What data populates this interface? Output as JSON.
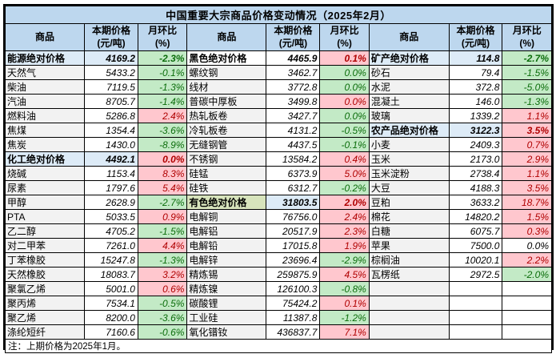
{
  "title": "中国重要大宗商品价格变动情况（2025年2月）",
  "note": "注：上期价格为2025年1月。",
  "header": {
    "name": "商品",
    "price1": "本期价格",
    "price2": "(元/吨)",
    "mom1": "月环比",
    "mom2": "(%)"
  },
  "colors": {
    "header_bg": "#BDD7EE",
    "section_blue": "#DDEBF7",
    "section_green": "#D7E4BC",
    "name_gray": "#F2F2F2",
    "white": "#FFFFFF",
    "up_bg": "#FFC7CE",
    "up_text": "#B00000",
    "down_bg": "#C3EAC6",
    "down_text": "#0B6D0B"
  },
  "groups": [
    [
      {
        "name": "能源绝对价格",
        "price": "4169.2",
        "mom": "-2.3%",
        "section": true,
        "name_fill": "blue",
        "price_fill": "blue",
        "mom_fill": "green"
      },
      {
        "name": "天然气",
        "price": "5433.2",
        "mom": "-0.1%",
        "mom_fill": "green"
      },
      {
        "name": "柴油",
        "price": "7119.5",
        "mom": "-1.3%",
        "mom_fill": "green"
      },
      {
        "name": "汽油",
        "price": "8705.7",
        "mom": "-1.4%",
        "mom_fill": "green"
      },
      {
        "name": "燃料油",
        "price": "5286.8",
        "mom": "2.4%",
        "mom_fill": "red"
      },
      {
        "name": "焦煤",
        "price": "1354.4",
        "mom": "-3.6%",
        "mom_fill": "green"
      },
      {
        "name": "焦炭",
        "price": "1430.0",
        "mom": "-8.9%",
        "mom_fill": "green"
      },
      {
        "name": "化工绝对价格",
        "price": "4492.1",
        "mom": "0.0%",
        "section": true,
        "name_fill": "blue",
        "price_fill": "blue",
        "mom_fill": "red"
      },
      {
        "name": "烧碱",
        "price": "1153.4",
        "mom": "8.3%",
        "mom_fill": "red"
      },
      {
        "name": "尿素",
        "price": "1797.6",
        "mom": "5.4%",
        "mom_fill": "red"
      },
      {
        "name": "甲醇",
        "price": "2628.9",
        "mom": "-2.7%",
        "mom_fill": "green"
      },
      {
        "name": "PTA",
        "price": "5033.5",
        "mom": "0.9%",
        "mom_fill": "red"
      },
      {
        "name": "乙二醇",
        "price": "4705.2",
        "mom": "-1.5%",
        "mom_fill": "green"
      },
      {
        "name": "对二甲苯",
        "price": "7261.0",
        "mom": "4.4%",
        "mom_fill": "red"
      },
      {
        "name": "丁苯橡胶",
        "price": "15247.8",
        "mom": "-1.3%",
        "mom_fill": "green"
      },
      {
        "name": "天然橡胶",
        "price": "18083.7",
        "mom": "3.2%",
        "mom_fill": "red"
      },
      {
        "name": "聚氯乙烯",
        "price": "5001.0",
        "mom": "0.6%",
        "mom_fill": "red"
      },
      {
        "name": "聚丙烯",
        "price": "7534.1",
        "mom": "-0.5%",
        "mom_fill": "green"
      },
      {
        "name": "聚乙烯",
        "price": "8200.0",
        "mom": "-3.6%",
        "mom_fill": "green"
      },
      {
        "name": "涤纶短纤",
        "price": "7160.6",
        "mom": "-0.6%",
        "mom_fill": "green"
      }
    ],
    [
      {
        "name": "黑色绝对价格",
        "price": "4465.9",
        "mom": "0.1%",
        "section": true,
        "name_fill": "white",
        "price_fill": "white",
        "mom_fill": "red"
      },
      {
        "name": "螺纹钢",
        "price": "3462.7",
        "mom": "0.0%",
        "mom_fill": "green"
      },
      {
        "name": "线材",
        "price": "3772.8",
        "mom": "0.0%",
        "mom_fill": "green"
      },
      {
        "name": "普碳中厚板",
        "price": "3499.8",
        "mom": "0.0%",
        "mom_fill": "red"
      },
      {
        "name": "热轧板卷",
        "price": "3427.7",
        "mom": "0.0%",
        "mom_fill": "green"
      },
      {
        "name": "冷轧板卷",
        "price": "4131.2",
        "mom": "-0.5%",
        "mom_fill": "green"
      },
      {
        "name": "无缝钢管",
        "price": "4437.5",
        "mom": "-0.1%",
        "mom_fill": "green"
      },
      {
        "name": "不锈钢",
        "price": "13584.2",
        "mom": "0.4%",
        "mom_fill": "red"
      },
      {
        "name": "硅锰",
        "price": "6373.9",
        "mom": "5.0%",
        "mom_fill": "red"
      },
      {
        "name": "硅铁",
        "price": "6312.7",
        "mom": "-0.2%",
        "mom_fill": "green"
      },
      {
        "name": "有色绝对价格",
        "price": "31803.5",
        "mom": "2.0%",
        "section": true,
        "name_fill": "green",
        "price_fill": "blue",
        "mom_fill": "red"
      },
      {
        "name": "电解铜",
        "price": "76756.0",
        "mom": "2.4%",
        "mom_fill": "red"
      },
      {
        "name": "电解铝",
        "price": "20517.9",
        "mom": "2.3%",
        "mom_fill": "red"
      },
      {
        "name": "电解铅",
        "price": "17015.8",
        "mom": "1.9%",
        "mom_fill": "red"
      },
      {
        "name": "电解锌",
        "price": "23696.4",
        "mom": "-2.9%",
        "mom_fill": "green"
      },
      {
        "name": "精炼锡",
        "price": "259875.9",
        "mom": "4.5%",
        "mom_fill": "red"
      },
      {
        "name": "精炼镍",
        "price": "126100.3",
        "mom": "-0.8%",
        "mom_fill": "green"
      },
      {
        "name": "碳酸锂",
        "price": "75424.2",
        "mom": "0.1%",
        "mom_fill": "red"
      },
      {
        "name": "工业硅",
        "price": "11387.8",
        "mom": "-1.2%",
        "mom_fill": "green"
      },
      {
        "name": "氧化镨钕",
        "price": "436837.7",
        "mom": "7.1%",
        "mom_fill": "red"
      }
    ],
    [
      {
        "name": "矿产绝对价格",
        "price": "114.8",
        "mom": "-2.7%",
        "section": true,
        "name_fill": "blue",
        "price_fill": "blue",
        "mom_fill": "green"
      },
      {
        "name": "砂石",
        "price": "79.4",
        "mom": "-1.5%",
        "mom_fill": "green"
      },
      {
        "name": "水泥",
        "price": "372.8",
        "mom": "-5.0%",
        "mom_fill": "green"
      },
      {
        "name": "混凝土",
        "price": "146.0",
        "mom": "-1.3%",
        "mom_fill": "green"
      },
      {
        "name": "玻璃",
        "price": "1339.2",
        "mom": "1.1%",
        "mom_fill": "red"
      },
      {
        "name": "农产品绝对价格",
        "price": "3122.3",
        "mom": "3.5%",
        "section": true,
        "name_fill": "blue",
        "price_fill": "blue",
        "mom_fill": "red"
      },
      {
        "name": "小麦",
        "price": "2409.3",
        "mom": "0.7%",
        "mom_fill": "red"
      },
      {
        "name": "玉米",
        "price": "2173.0",
        "mom": "2.9%",
        "mom_fill": "red"
      },
      {
        "name": "玉米淀粉",
        "price": "2738.4",
        "mom": "1.1%",
        "mom_fill": "red"
      },
      {
        "name": "大豆",
        "price": "4188.3",
        "mom": "3.5%",
        "mom_fill": "red"
      },
      {
        "name": "豆粕",
        "price": "3633.2",
        "mom": "18.7%",
        "mom_fill": "red"
      },
      {
        "name": "棉花",
        "price": "14820.2",
        "mom": "1.5%",
        "mom_fill": "red"
      },
      {
        "name": "白糖",
        "price": "6075.7",
        "mom": "0.3%",
        "mom_fill": "red"
      },
      {
        "name": "苹果",
        "price": "7500.0",
        "mom": "0.0%",
        "mom_fill": "white"
      },
      {
        "name": "棕榈油",
        "price": "10020.1",
        "mom": "2.2%",
        "mom_fill": "red"
      },
      {
        "name": "瓦楞纸",
        "price": "2972.5",
        "mom": "-2.0%",
        "mom_fill": "green"
      },
      {
        "empty": true
      },
      {
        "empty": true
      },
      {
        "empty": true
      },
      {
        "empty": true
      }
    ]
  ]
}
